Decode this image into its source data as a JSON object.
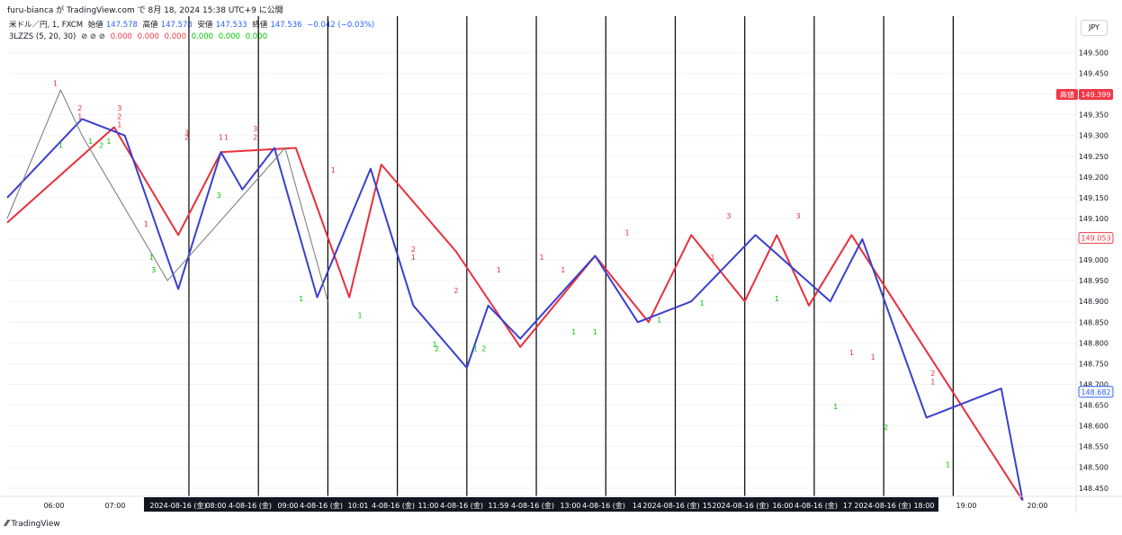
{
  "header": {
    "publish_line": "furu-bianca が TradingView.com で 8月 18, 2024 15:38 UTC+9 に公開"
  },
  "legend": {
    "symbol": "米ドル／円, 1, FXCM",
    "open_label": "始値",
    "open_value": "147.578",
    "high_label": "高値",
    "high_value": "147.578",
    "low_label": "安値",
    "low_value": "147.533",
    "close_label": "終値",
    "close_value": "147.536",
    "change": "−0.042 (−0.03%)",
    "indicator_name": "3LZZS (5, 20, 30)",
    "indicator_icons": "⊘ ⊘ ⊘",
    "indicator_values": [
      "0.000",
      "0.000",
      "0.000",
      "0.000",
      "0.000",
      "0.000"
    ]
  },
  "currency_button": "JPY",
  "footer": {
    "brand": "TradingView"
  },
  "colors": {
    "up": "#2962ff",
    "down": "#f23645",
    "zigzag_red": "#e8303a",
    "zigzag_blue": "#3a3fcf",
    "zigzag_gray": "#777777",
    "label_red": "#e8303a",
    "label_green": "#00c800"
  },
  "chart_data": {
    "type": "line",
    "ylim": [
      148.43,
      149.54
    ],
    "y_ticks": [
      "149.500",
      "149.450",
      "149.400",
      "149.350",
      "149.300",
      "149.250",
      "149.200",
      "149.150",
      "149.100",
      "149.050",
      "149.000",
      "148.950",
      "148.900",
      "148.850",
      "148.800",
      "148.750",
      "148.700",
      "148.650",
      "148.600",
      "148.550",
      "148.500",
      "148.450"
    ],
    "price_badges": [
      {
        "label": "高値",
        "value": "149.399",
        "style": "filled-red"
      },
      {
        "label": "",
        "value": "149.053",
        "style": "outline-red"
      },
      {
        "label": "",
        "value": "148.682",
        "style": "outline-blue"
      }
    ],
    "x_labels": [
      "06:00",
      "07:00",
      "2024-08-16 (金)",
      "08:00",
      "4-08-16 (金)",
      "09:00",
      "4-08-16 (金)",
      "10:01",
      "4-08-16 (金)",
      "11:00",
      "4-08-16 (金)",
      "11:59",
      "4-08-16 (金)",
      "13:00",
      "4-08-16 (金)",
      "14",
      "2024-08-16 (金)",
      "15",
      "2024-08-16 (金)",
      "16:00",
      "4-08-16 (金)",
      "17",
      "2024-08-16 (金)",
      "18:00",
      "19:00",
      "20:00"
    ],
    "series": [
      {
        "name": "",
        "color": "#e8303a",
        "points": [
          [
            0.0,
            149.09
          ],
          [
            0.1,
            149.32
          ],
          [
            0.16,
            149.06
          ],
          [
            0.2,
            149.26
          ],
          [
            0.27,
            149.27
          ],
          [
            0.32,
            148.91
          ],
          [
            0.35,
            149.23
          ],
          [
            0.42,
            149.02
          ],
          [
            0.48,
            148.79
          ],
          [
            0.55,
            149.01
          ],
          [
            0.6,
            148.85
          ],
          [
            0.64,
            149.06
          ],
          [
            0.69,
            148.9
          ],
          [
            0.72,
            149.06
          ],
          [
            0.75,
            148.89
          ],
          [
            0.79,
            149.06
          ],
          [
            0.95,
            148.42
          ]
        ]
      },
      {
        "name": "",
        "color": "#3a3fcf",
        "points": [
          [
            0.0,
            149.15
          ],
          [
            0.07,
            149.34
          ],
          [
            0.11,
            149.3
          ],
          [
            0.16,
            148.93
          ],
          [
            0.2,
            149.26
          ],
          [
            0.22,
            149.17
          ],
          [
            0.25,
            149.27
          ],
          [
            0.29,
            148.91
          ],
          [
            0.34,
            149.22
          ],
          [
            0.38,
            148.89
          ],
          [
            0.43,
            148.74
          ],
          [
            0.45,
            148.89
          ],
          [
            0.48,
            148.81
          ],
          [
            0.55,
            149.01
          ],
          [
            0.59,
            148.85
          ],
          [
            0.64,
            148.9
          ],
          [
            0.7,
            149.06
          ],
          [
            0.77,
            148.9
          ],
          [
            0.8,
            149.05
          ],
          [
            0.86,
            148.62
          ],
          [
            0.93,
            148.69
          ],
          [
            0.95,
            148.42
          ]
        ]
      },
      {
        "name": "",
        "color": "#777777",
        "points": [
          [
            0.0,
            149.1
          ],
          [
            0.05,
            149.41
          ],
          [
            0.07,
            149.3
          ],
          [
            0.15,
            148.95
          ],
          [
            0.26,
            149.27
          ],
          [
            0.3,
            148.9
          ]
        ]
      }
    ],
    "session_dividers_x_frac": [
      0.17,
      0.235,
      0.3,
      0.365,
      0.43,
      0.495,
      0.56,
      0.625,
      0.69,
      0.755,
      0.82,
      0.885
    ],
    "pivot_labels": [
      {
        "text": "1",
        "color": "red",
        "x": 0.045,
        "y": 149.42
      },
      {
        "text": "2",
        "color": "red",
        "x": 0.068,
        "y": 149.36
      },
      {
        "text": "1",
        "color": "red",
        "x": 0.068,
        "y": 149.34
      },
      {
        "text": "3",
        "color": "red",
        "x": 0.105,
        "y": 149.36
      },
      {
        "text": "2",
        "color": "red",
        "x": 0.105,
        "y": 149.34
      },
      {
        "text": "1",
        "color": "red",
        "x": 0.105,
        "y": 149.32
      },
      {
        "text": "1",
        "color": "green",
        "x": 0.05,
        "y": 149.27
      },
      {
        "text": "1",
        "color": "green",
        "x": 0.078,
        "y": 149.28
      },
      {
        "text": "2",
        "color": "green",
        "x": 0.088,
        "y": 149.27
      },
      {
        "text": "1",
        "color": "green",
        "x": 0.095,
        "y": 149.28
      },
      {
        "text": "1",
        "color": "green",
        "x": 0.135,
        "y": 149.0
      },
      {
        "text": "3",
        "color": "green",
        "x": 0.137,
        "y": 148.97
      },
      {
        "text": "1",
        "color": "red",
        "x": 0.13,
        "y": 149.08
      },
      {
        "text": "3",
        "color": "red",
        "x": 0.168,
        "y": 149.3
      },
      {
        "text": "2",
        "color": "red",
        "x": 0.168,
        "y": 149.29
      },
      {
        "text": "3",
        "color": "green",
        "x": 0.198,
        "y": 149.15
      },
      {
        "text": "1",
        "color": "red",
        "x": 0.2,
        "y": 149.29
      },
      {
        "text": "1",
        "color": "red",
        "x": 0.205,
        "y": 149.29
      },
      {
        "text": "3",
        "color": "red",
        "x": 0.232,
        "y": 149.31
      },
      {
        "text": "2",
        "color": "red",
        "x": 0.232,
        "y": 149.29
      },
      {
        "text": "1",
        "color": "green",
        "x": 0.275,
        "y": 148.9
      },
      {
        "text": "1",
        "color": "red",
        "x": 0.305,
        "y": 149.21
      },
      {
        "text": "1",
        "color": "green",
        "x": 0.33,
        "y": 148.86
      },
      {
        "text": "2",
        "color": "red",
        "x": 0.38,
        "y": 149.02
      },
      {
        "text": "1",
        "color": "red",
        "x": 0.38,
        "y": 149.0
      },
      {
        "text": "1",
        "color": "green",
        "x": 0.4,
        "y": 148.79
      },
      {
        "text": "2",
        "color": "green",
        "x": 0.402,
        "y": 148.78
      },
      {
        "text": "2",
        "color": "red",
        "x": 0.42,
        "y": 148.92
      },
      {
        "text": "1",
        "color": "green",
        "x": 0.438,
        "y": 148.78
      },
      {
        "text": "2",
        "color": "green",
        "x": 0.446,
        "y": 148.78
      },
      {
        "text": "1",
        "color": "red",
        "x": 0.46,
        "y": 148.97
      },
      {
        "text": "1",
        "color": "red",
        "x": 0.5,
        "y": 149.0
      },
      {
        "text": "1",
        "color": "red",
        "x": 0.52,
        "y": 148.97
      },
      {
        "text": "1",
        "color": "green",
        "x": 0.53,
        "y": 148.82
      },
      {
        "text": "1",
        "color": "green",
        "x": 0.55,
        "y": 148.82
      },
      {
        "text": "1",
        "color": "red",
        "x": 0.58,
        "y": 149.06
      },
      {
        "text": "1",
        "color": "green",
        "x": 0.61,
        "y": 148.85
      },
      {
        "text": "1",
        "color": "red",
        "x": 0.66,
        "y": 149.0
      },
      {
        "text": "3",
        "color": "red",
        "x": 0.675,
        "y": 149.1
      },
      {
        "text": "1",
        "color": "green",
        "x": 0.65,
        "y": 148.89
      },
      {
        "text": "1",
        "color": "green",
        "x": 0.72,
        "y": 148.9
      },
      {
        "text": "3",
        "color": "red",
        "x": 0.74,
        "y": 149.1
      },
      {
        "text": "1",
        "color": "red",
        "x": 0.79,
        "y": 148.77
      },
      {
        "text": "1",
        "color": "red",
        "x": 0.81,
        "y": 148.76
      },
      {
        "text": "1",
        "color": "green",
        "x": 0.775,
        "y": 148.64
      },
      {
        "text": "2",
        "color": "green",
        "x": 0.822,
        "y": 148.59
      },
      {
        "text": "2",
        "color": "red",
        "x": 0.866,
        "y": 148.72
      },
      {
        "text": "1",
        "color": "red",
        "x": 0.866,
        "y": 148.7
      },
      {
        "text": "1",
        "color": "green",
        "x": 0.88,
        "y": 148.5
      }
    ]
  }
}
